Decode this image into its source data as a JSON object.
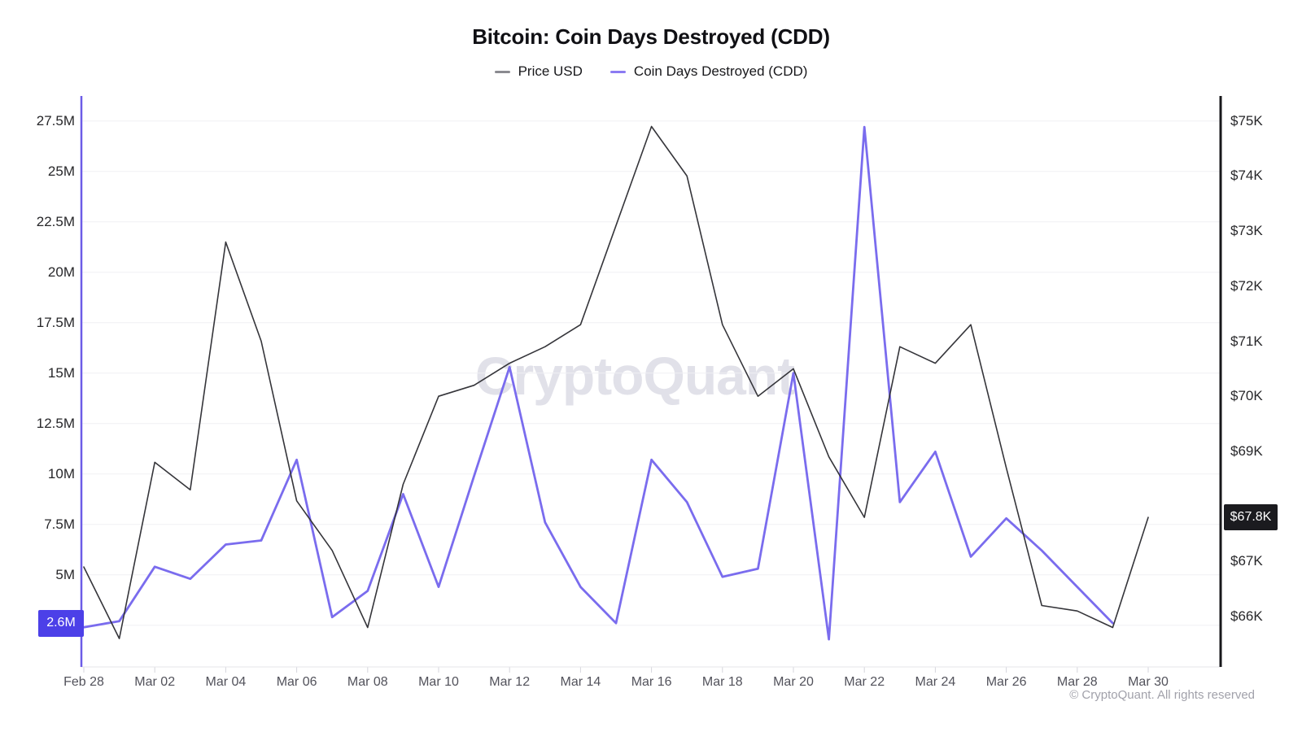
{
  "title": "Bitcoin: Coin Days Destroyed (CDD)",
  "legend": {
    "items": [
      {
        "label": "Price USD",
        "dash_color": "#8a8a90"
      },
      {
        "label": "Coin Days Destroyed (CDD)",
        "dash_color": "#8b7bf2"
      }
    ]
  },
  "watermark": "CryptoQuant",
  "footer": "© CryptoQuant. All rights reserved",
  "current_badges": {
    "cdd_value": "2.6M",
    "cdd_color": "#4c40e8",
    "price_value": "$67.8K",
    "price_color": "#1b1b1f"
  },
  "chart_data": {
    "type": "line",
    "title": "Bitcoin: Coin Days Destroyed (CDD)",
    "grid": "horizontal",
    "legend_position": "top",
    "categories": [
      "Feb 28",
      "Mar 01",
      "Mar 02",
      "Mar 03",
      "Mar 04",
      "Mar 05",
      "Mar 06",
      "Mar 07",
      "Mar 08",
      "Mar 09",
      "Mar 10",
      "Mar 11",
      "Mar 12",
      "Mar 13",
      "Mar 14",
      "Mar 15",
      "Mar 16",
      "Mar 17",
      "Mar 18",
      "Mar 19",
      "Mar 20",
      "Mar 21",
      "Mar 22",
      "Mar 23",
      "Mar 24",
      "Mar 25",
      "Mar 26",
      "Mar 27",
      "Mar 28",
      "Mar 29",
      "Mar 30"
    ],
    "x_tick_every": 2,
    "series": [
      {
        "name": "Price USD",
        "axis": "right",
        "unit": "USD thousands",
        "color": "#35353a",
        "values": [
          66.9,
          65.6,
          68.8,
          68.3,
          72.8,
          71.0,
          68.1,
          67.2,
          65.8,
          68.4,
          70.0,
          70.2,
          70.6,
          70.9,
          71.3,
          73.1,
          74.9,
          74.0,
          71.3,
          70.0,
          70.5,
          68.9,
          67.8,
          70.9,
          70.6,
          71.3,
          68.7,
          66.2,
          66.1,
          65.8,
          67.8
        ]
      },
      {
        "name": "Coin Days Destroyed (CDD)",
        "axis": "left",
        "unit": "million coin-days",
        "color": "#7a6cee",
        "values": [
          2.4,
          2.7,
          5.4,
          4.8,
          6.5,
          6.7,
          10.7,
          2.9,
          4.2,
          9.0,
          4.4,
          9.9,
          15.3,
          7.6,
          4.4,
          2.6,
          10.7,
          8.6,
          4.9,
          5.3,
          15.0,
          1.8,
          27.2,
          8.6,
          11.1,
          5.9,
          7.8,
          6.2,
          4.4,
          2.6,
          null
        ]
      }
    ],
    "left_axis": {
      "unit": "M",
      "tick_values": [
        27.5,
        25,
        22.5,
        20,
        17.5,
        15,
        12.5,
        10,
        7.5,
        5,
        2.5
      ],
      "range": [
        0.4,
        28.7
      ],
      "axis_color": "#6c5ce7"
    },
    "right_axis": {
      "unit": "$K",
      "tick_values": [
        75,
        74,
        73,
        72,
        71,
        70,
        69,
        67,
        66
      ],
      "range": [
        65.1,
        75.5
      ],
      "axis_color": "#18181b"
    }
  }
}
